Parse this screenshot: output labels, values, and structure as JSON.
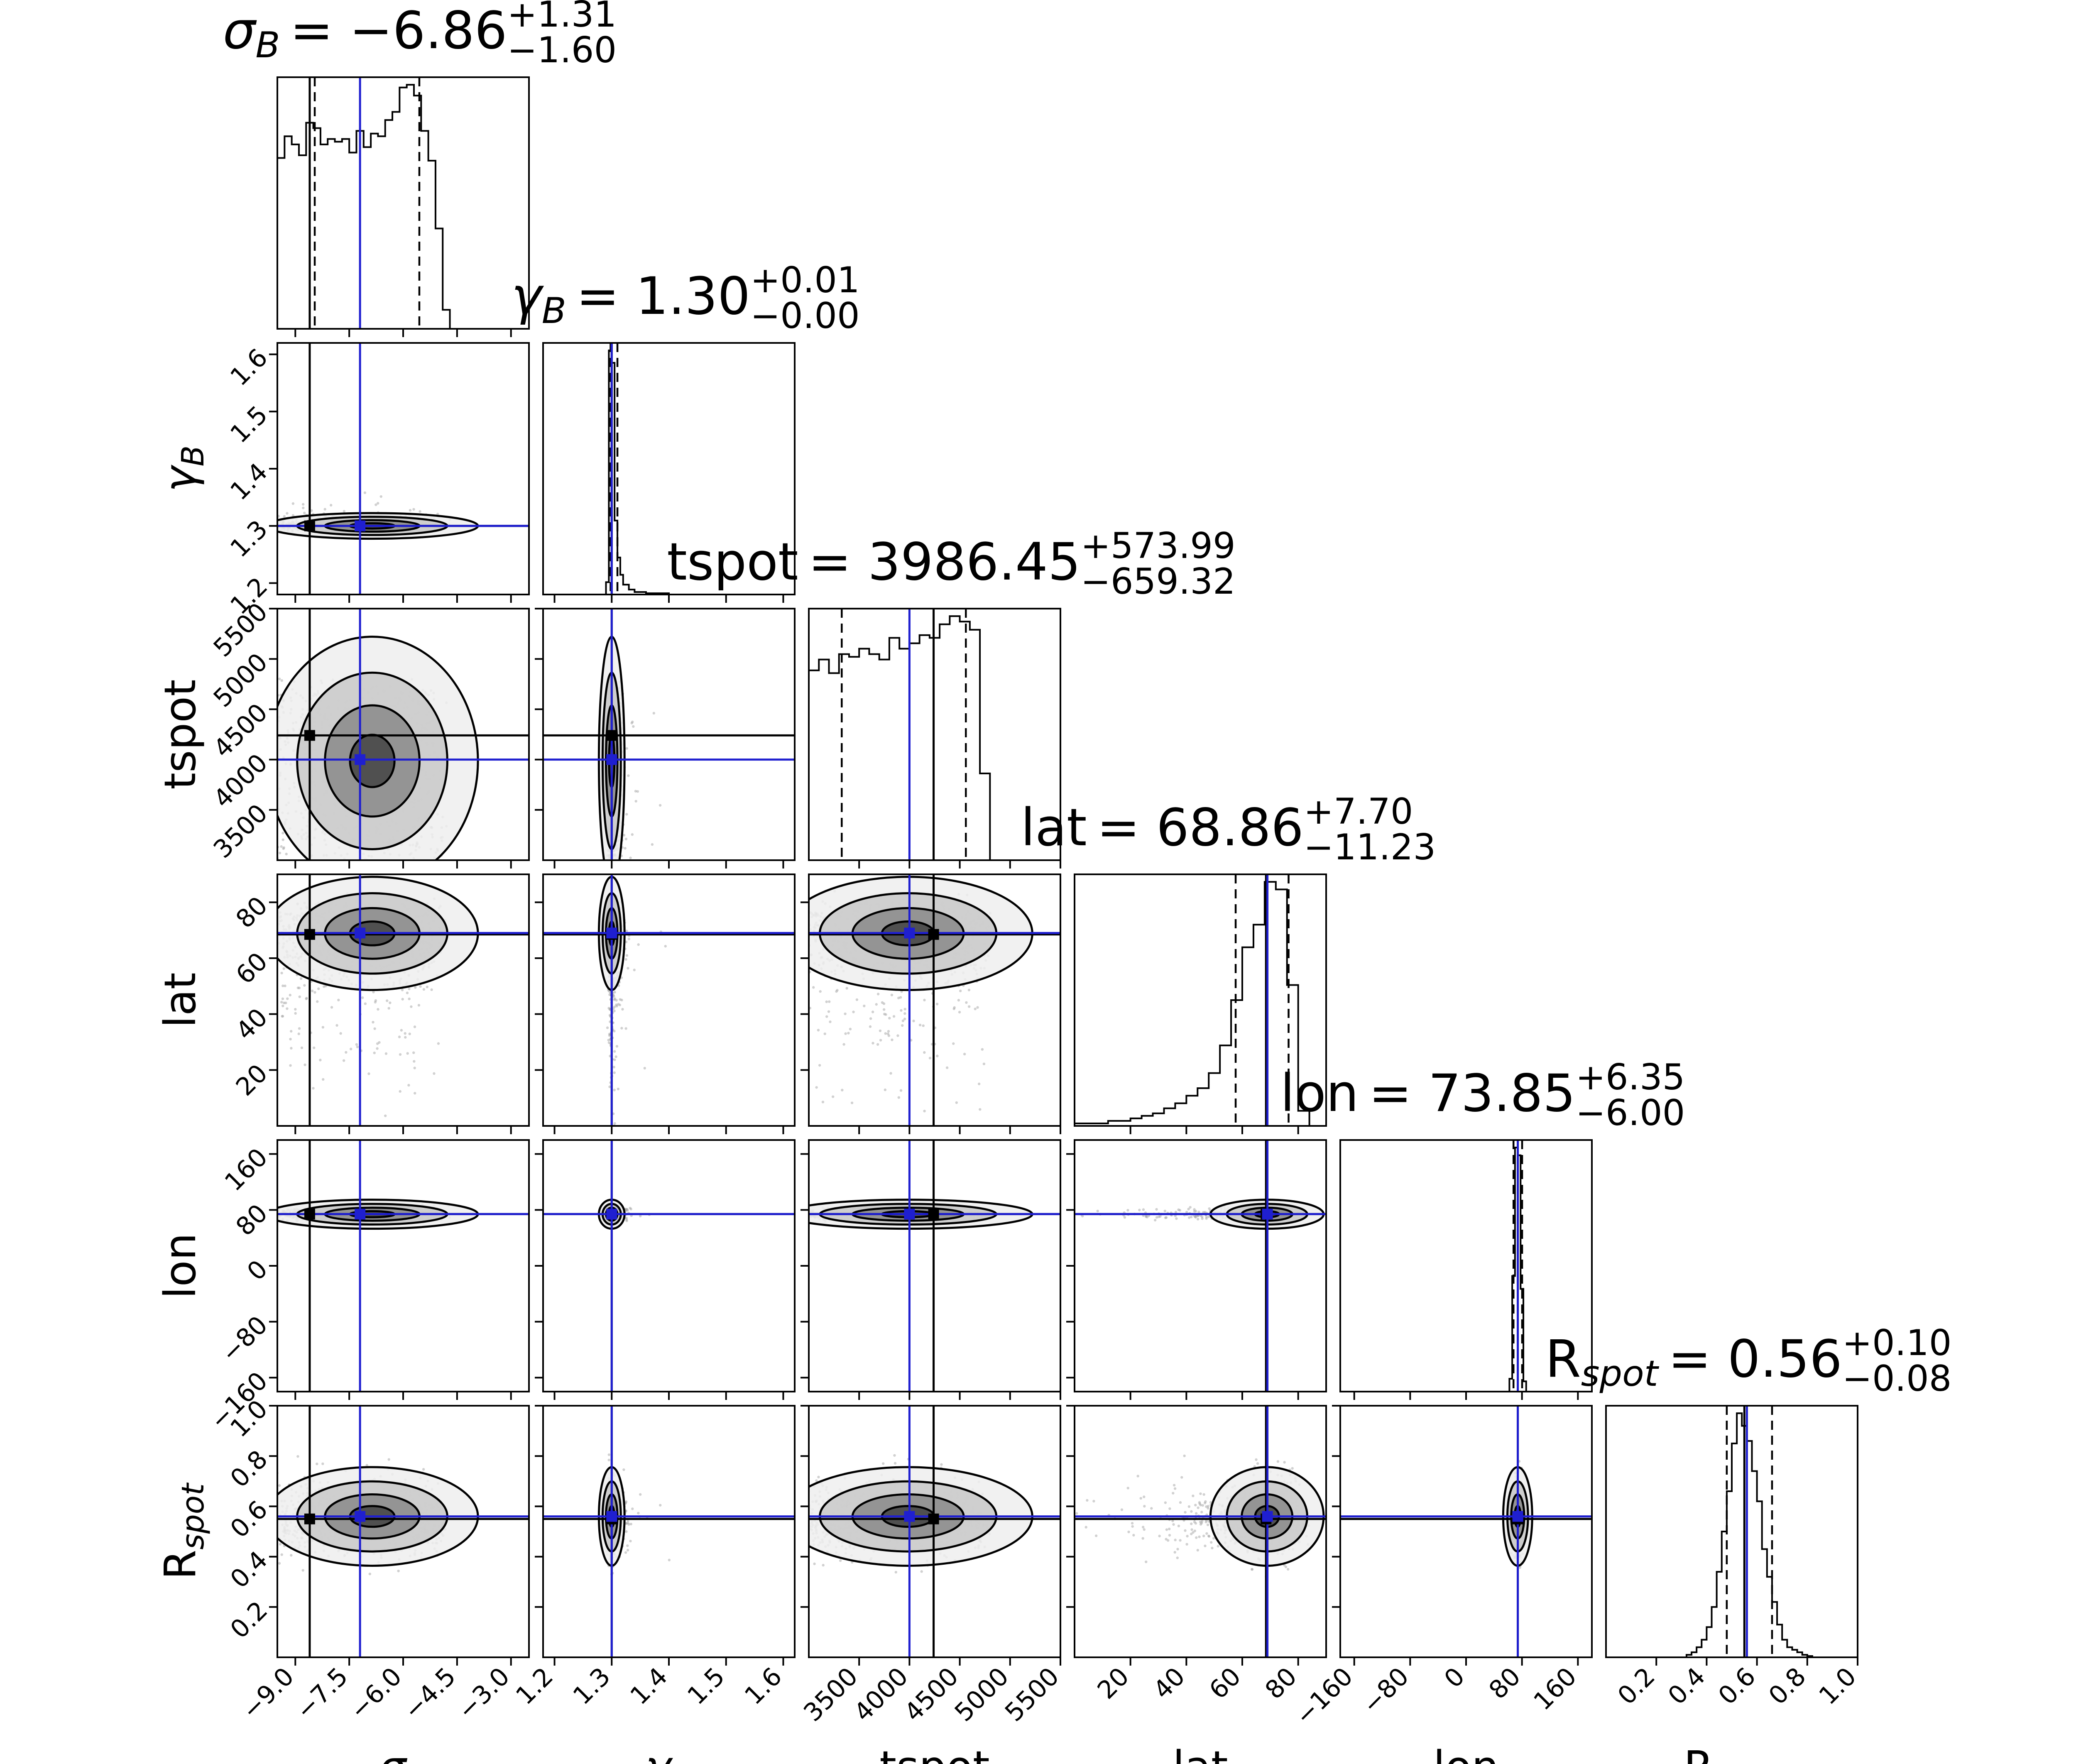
{
  "chart_data": {
    "type": "scatter",
    "title": "",
    "colors": {
      "truth_true": "#1f1fd0",
      "truth_median": "#000000",
      "density_1": "#efefef",
      "density_2": "#c9c9c9",
      "density_3": "#8a8a8a",
      "density_4": "#444444",
      "histogram": "#000000",
      "samples": "#9a9a9a"
    },
    "parameters": [
      {
        "key": "sigma_B",
        "label_main": "σ",
        "label_sub": "B",
        "range": [
          -9.5,
          -2.5
        ],
        "ticks": [
          -9.0,
          -7.5,
          -6.0,
          -4.5,
          -3.0
        ],
        "tick_labels": [
          "−9.0",
          "−7.5",
          "−6.0",
          "−4.5",
          "−3.0"
        ],
        "title_prefix": "σ",
        "title_sub": "B",
        "title_value": "= −6.86",
        "title_plus": "+1.31",
        "title_minus": "−1.60",
        "median": -6.86,
        "quantiles": [
          -8.46,
          -6.86,
          -5.55
        ],
        "truth_median": -8.6,
        "truth_true": -7.2,
        "hist_bins": [
          -9.5,
          -9.3,
          -9.1,
          -8.9,
          -8.7,
          -8.5,
          -8.3,
          -8.1,
          -7.9,
          -7.7,
          -7.5,
          -7.3,
          -7.1,
          -6.9,
          -6.7,
          -6.5,
          -6.3,
          -6.1,
          -5.9,
          -5.7,
          -5.5,
          -5.3,
          -5.1,
          -4.9,
          -4.7,
          -4.5,
          -4.3
        ],
        "hist_values": [
          0.63,
          0.71,
          0.68,
          0.64,
          0.76,
          0.74,
          0.68,
          0.7,
          0.69,
          0.7,
          0.65,
          0.73,
          0.67,
          0.72,
          0.71,
          0.77,
          0.8,
          0.89,
          0.9,
          0.86,
          0.73,
          0.62,
          0.37,
          0.07,
          0.0,
          0.0
        ]
      },
      {
        "key": "gamma_B",
        "label_main": "γ",
        "label_sub": "B",
        "range": [
          1.18,
          1.62
        ],
        "ticks": [
          1.2,
          1.3,
          1.4,
          1.5,
          1.6
        ],
        "tick_labels": [
          "1.2",
          "1.3",
          "1.4",
          "1.5",
          "1.6"
        ],
        "title_prefix": "γ",
        "title_sub": "B",
        "title_value": "= 1.30",
        "title_plus": "+0.01",
        "title_minus": "−0.00",
        "median": 1.3,
        "quantiles": [
          1.298,
          1.3,
          1.31
        ],
        "truth_median": 1.3,
        "truth_true": 1.3,
        "hist_bins": [
          1.29,
          1.295,
          1.3,
          1.305,
          1.31,
          1.315,
          1.32,
          1.33,
          1.34,
          1.36,
          1.4,
          1.45
        ],
        "hist_values": [
          0.05,
          0.99,
          0.94,
          0.3,
          0.15,
          0.08,
          0.04,
          0.02,
          0.01,
          0.005,
          0.0
        ]
      },
      {
        "key": "tspot",
        "label_main": "tspot",
        "label_sub": "",
        "range": [
          3000,
          5500
        ],
        "ticks": [
          3500,
          4000,
          4500,
          5000,
          5500
        ],
        "tick_labels": [
          "3500",
          "4000",
          "4500",
          "5000",
          "5500"
        ],
        "title_prefix": "tspot",
        "title_sub": "",
        "title_value": "= 3986.45",
        "title_plus": "+573.99",
        "title_minus": "−659.32",
        "median": 3986.45,
        "quantiles": [
          3327.13,
          3986.45,
          4560.44
        ],
        "truth_median": 4240,
        "truth_true": 4000,
        "hist_bins": [
          3000,
          3100,
          3200,
          3300,
          3400,
          3500,
          3600,
          3700,
          3800,
          3900,
          4000,
          4100,
          4200,
          4300,
          4400,
          4500,
          4600,
          4700,
          4800
        ],
        "hist_values": [
          0.7,
          0.74,
          0.69,
          0.76,
          0.75,
          0.78,
          0.76,
          0.74,
          0.82,
          0.78,
          0.8,
          0.83,
          0.82,
          0.87,
          0.9,
          0.88,
          0.85,
          0.32,
          0.0
        ]
      },
      {
        "key": "lat",
        "label_main": "lat",
        "label_sub": "",
        "range": [
          0,
          90
        ],
        "ticks": [
          20,
          40,
          60,
          80
        ],
        "tick_labels": [
          "20",
          "40",
          "60",
          "80"
        ],
        "title_prefix": "lat",
        "title_sub": "",
        "title_value": "= 68.86",
        "title_plus": "+7.70",
        "title_minus": "−11.23",
        "median": 68.86,
        "quantiles": [
          57.63,
          68.86,
          76.56
        ],
        "truth_median": 68.5,
        "truth_true": 69.0,
        "hist_bins": [
          0,
          4,
          8,
          12,
          16,
          20,
          24,
          28,
          32,
          36,
          40,
          44,
          48,
          52,
          56,
          60,
          64,
          68,
          72,
          76,
          80,
          84
        ],
        "hist_values": [
          0.01,
          0.01,
          0.01,
          0.02,
          0.02,
          0.03,
          0.04,
          0.05,
          0.07,
          0.09,
          0.12,
          0.15,
          0.21,
          0.32,
          0.5,
          0.71,
          0.8,
          0.97,
          0.94,
          0.56,
          0.06
        ]
      },
      {
        "key": "lon",
        "label_main": "lon",
        "label_sub": "",
        "range": [
          -180,
          180
        ],
        "ticks": [
          -160,
          -80,
          0,
          80,
          160
        ],
        "tick_labels": [
          "−160",
          "−80",
          "0",
          "80",
          "160"
        ],
        "title_prefix": "lon",
        "title_sub": "",
        "title_value": "= 73.85",
        "title_plus": "+6.35",
        "title_minus": "−6.00",
        "median": 73.85,
        "quantiles": [
          67.85,
          73.85,
          80.2
        ],
        "truth_median": 74,
        "truth_true": 74,
        "hist_bins": [
          62,
          66,
          70,
          74,
          78,
          82,
          86
        ],
        "hist_values": [
          0.05,
          0.45,
          0.95,
          0.92,
          0.4,
          0.04
        ]
      },
      {
        "key": "R_spot",
        "label_main": "R",
        "label_sub": "spot",
        "range": [
          0,
          1
        ],
        "ticks": [
          0.2,
          0.4,
          0.6,
          0.8,
          1.0
        ],
        "tick_labels": [
          "0.2",
          "0.4",
          "0.6",
          "0.8",
          "1.0"
        ],
        "title_prefix": "R",
        "title_sub": "spot",
        "title_value": "= 0.56",
        "title_plus": "+0.10",
        "title_minus": "−0.08",
        "median": 0.56,
        "quantiles": [
          0.48,
          0.56,
          0.66
        ],
        "truth_median": 0.55,
        "truth_true": 0.56,
        "hist_bins": [
          0.3,
          0.32,
          0.34,
          0.36,
          0.38,
          0.4,
          0.42,
          0.44,
          0.46,
          0.48,
          0.5,
          0.52,
          0.54,
          0.56,
          0.58,
          0.6,
          0.62,
          0.64,
          0.66,
          0.68,
          0.7,
          0.72,
          0.74,
          0.76,
          0.78,
          0.8,
          0.82,
          0.84
        ],
        "hist_values": [
          0.0,
          0.01,
          0.02,
          0.04,
          0.07,
          0.12,
          0.2,
          0.34,
          0.5,
          0.66,
          0.85,
          0.97,
          0.92,
          0.86,
          0.74,
          0.62,
          0.43,
          0.32,
          0.22,
          0.13,
          0.07,
          0.04,
          0.03,
          0.02,
          0.01,
          0.005,
          0.0
        ]
      }
    ]
  }
}
